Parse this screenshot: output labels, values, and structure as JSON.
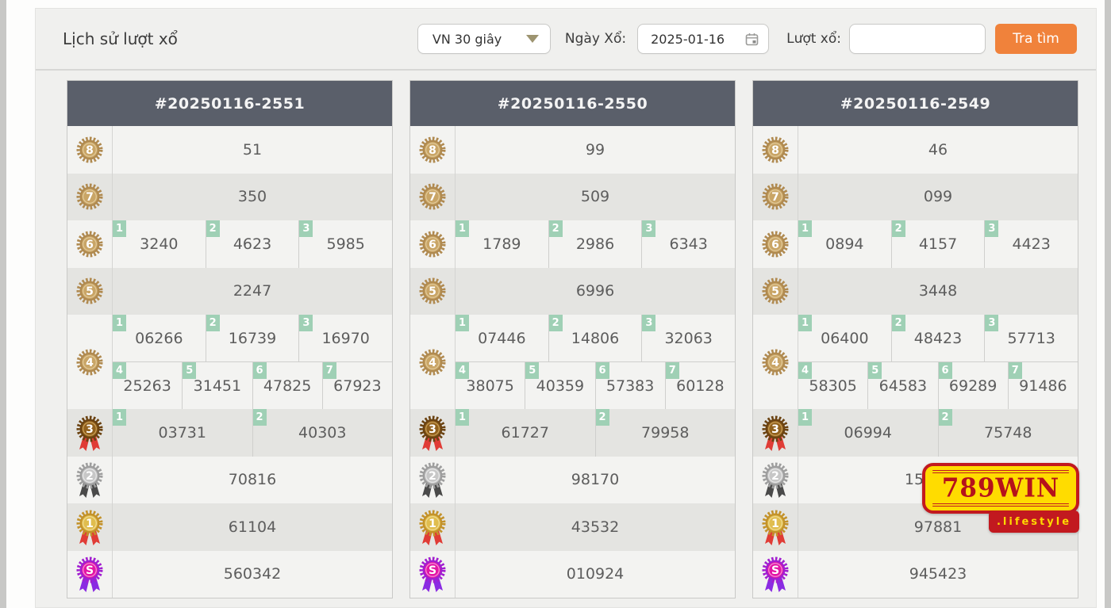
{
  "toolbar": {
    "title": "Lịch sử lượt xổ",
    "lottery_select_value": "VN 30 giây",
    "date_label": "Ngày Xổ:",
    "date_value": "2025-01-16",
    "draw_label": "Lượt xổ:",
    "draw_value": "",
    "search_button": "Tra tìm"
  },
  "logo": {
    "brand": "789WIN",
    "suffix": ".lifestyle"
  },
  "colors": {
    "accent_orange": "#f0823b",
    "card_header_bg": "#5a5f6a",
    "badge_green": "#9fd0b5",
    "row_light": "#f3f3f1",
    "row_dark": "#e4e4e1",
    "logo_yellow": "#ffdc00",
    "logo_red": "#c2191f"
  },
  "position_badges": [
    "1",
    "2",
    "3",
    "4",
    "5",
    "6",
    "7"
  ],
  "medal_palette": {
    "tan": {
      "ring": "#b08a50",
      "center": "#c9a566",
      "highlight": "#e8d3a8",
      "ribbon": null
    },
    "bronze": {
      "ring": "#6b4312",
      "center": "#91601c",
      "highlight": "#d9b36a",
      "ribbon": "#e03c36"
    },
    "silver": {
      "ring": "#9e9e9e",
      "center": "#c7c7c7",
      "highlight": "#efefef",
      "ribbon": "#4a4a4a"
    },
    "gold": {
      "ring": "#c3922a",
      "center": "#e0bd4e",
      "highlight": "#f4e3a6",
      "ribbon": "#e03c36"
    },
    "super": {
      "ring": "#a21fd0",
      "center": "#e416a6",
      "highlight": "#f7b6e3",
      "ribbon": "#8a2be2"
    }
  },
  "cards": [
    {
      "id": "#20250116-2551",
      "rows": [
        {
          "rank": "8",
          "medal": "tan",
          "values": [
            "51"
          ]
        },
        {
          "rank": "7",
          "medal": "tan",
          "values": [
            "350"
          ]
        },
        {
          "rank": "6",
          "medal": "tan",
          "indexed": true,
          "values": [
            "3240",
            "4623",
            "5985"
          ]
        },
        {
          "rank": "5",
          "medal": "tan",
          "values": [
            "2247"
          ]
        },
        {
          "rank": "4",
          "medal": "tan",
          "indexed": true,
          "split": [
            [
              "06266",
              "16739",
              "16970"
            ],
            [
              "25263",
              "31451",
              "47825",
              "67923"
            ]
          ]
        },
        {
          "rank": "3",
          "medal": "bronze",
          "indexed": true,
          "values": [
            "03731",
            "40303"
          ]
        },
        {
          "rank": "2",
          "medal": "silver",
          "values": [
            "70816"
          ]
        },
        {
          "rank": "1",
          "medal": "gold",
          "values": [
            "61104"
          ]
        },
        {
          "rank": "S",
          "medal": "super",
          "values": [
            "560342"
          ]
        }
      ]
    },
    {
      "id": "#20250116-2550",
      "rows": [
        {
          "rank": "8",
          "medal": "tan",
          "values": [
            "99"
          ]
        },
        {
          "rank": "7",
          "medal": "tan",
          "values": [
            "509"
          ]
        },
        {
          "rank": "6",
          "medal": "tan",
          "indexed": true,
          "values": [
            "1789",
            "2986",
            "6343"
          ]
        },
        {
          "rank": "5",
          "medal": "tan",
          "values": [
            "6996"
          ]
        },
        {
          "rank": "4",
          "medal": "tan",
          "indexed": true,
          "split": [
            [
              "07446",
              "14806",
              "32063"
            ],
            [
              "38075",
              "40359",
              "57383",
              "60128"
            ]
          ]
        },
        {
          "rank": "3",
          "medal": "bronze",
          "indexed": true,
          "values": [
            "61727",
            "79958"
          ]
        },
        {
          "rank": "2",
          "medal": "silver",
          "values": [
            "98170"
          ]
        },
        {
          "rank": "1",
          "medal": "gold",
          "values": [
            "43532"
          ]
        },
        {
          "rank": "S",
          "medal": "super",
          "values": [
            "010924"
          ]
        }
      ]
    },
    {
      "id": "#20250116-2549",
      "rows": [
        {
          "rank": "8",
          "medal": "tan",
          "values": [
            "46"
          ]
        },
        {
          "rank": "7",
          "medal": "tan",
          "values": [
            "099"
          ]
        },
        {
          "rank": "6",
          "medal": "tan",
          "indexed": true,
          "values": [
            "0894",
            "4157",
            "4423"
          ]
        },
        {
          "rank": "5",
          "medal": "tan",
          "values": [
            "3448"
          ]
        },
        {
          "rank": "4",
          "medal": "tan",
          "indexed": true,
          "split": [
            [
              "06400",
              "48423",
              "57713"
            ],
            [
              "58305",
              "64583",
              "69289",
              "91486"
            ]
          ]
        },
        {
          "rank": "3",
          "medal": "bronze",
          "indexed": true,
          "values": [
            "06994",
            "75748"
          ]
        },
        {
          "rank": "2",
          "medal": "silver",
          "values": [
            "15"
          ],
          "shift": true,
          "partially_obscured_by_logo": true
        },
        {
          "rank": "1",
          "medal": "gold",
          "values": [
            "97881"
          ]
        },
        {
          "rank": "S",
          "medal": "super",
          "values": [
            "945423"
          ]
        }
      ]
    }
  ]
}
